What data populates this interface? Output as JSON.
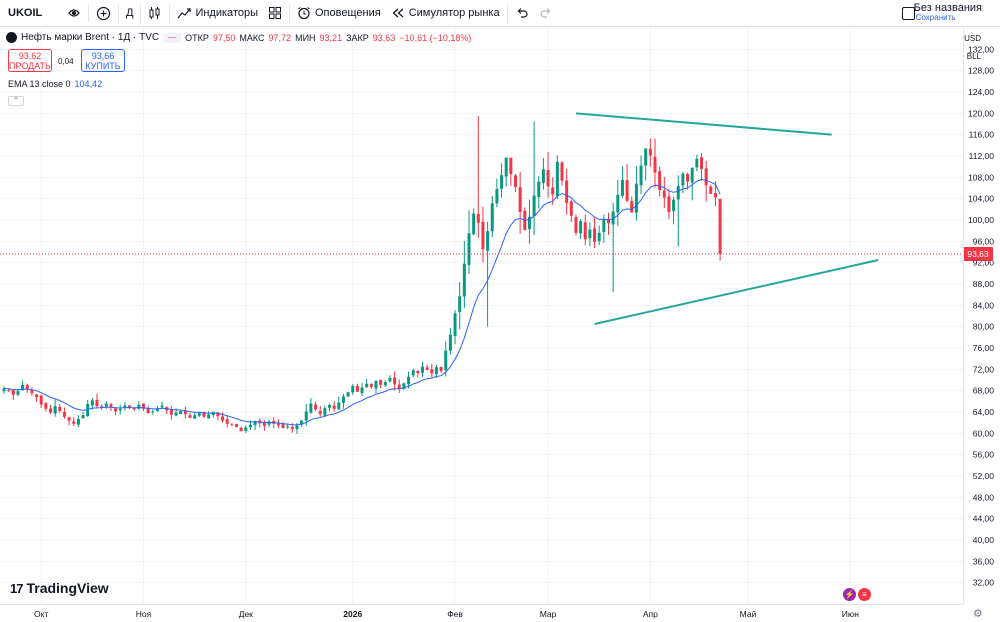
{
  "toolbar": {
    "symbol": "UKOIL",
    "interval": "Д",
    "indicators_label": "Индикаторы",
    "alerts_label": "Оповещения",
    "replay_label": "Симулятор рынка",
    "layout_name": "Без названия",
    "layout_status": "Сохранить"
  },
  "legend": {
    "title": "Нефть марки Brent · 1Д · TVC",
    "open_label": "ОТКР",
    "open": "97,50",
    "high_label": "МАКС",
    "high": "97,72",
    "low_label": "МИН",
    "low": "93,21",
    "close_label": "ЗАКР",
    "close": "93,63",
    "change": "−10,61 (−10,18%)",
    "sell_price": "93,62",
    "sell_label": "ПРОДАТЬ",
    "buy_price": "93,66",
    "buy_label": "КУПИТЬ",
    "spread": "0,04",
    "ema_label": "EMA 13 close 0",
    "ema_value": "104,42"
  },
  "price_axis": {
    "currency": "USD",
    "unit": "BLL"
  },
  "branding": {
    "logo_text": "TradingView"
  },
  "colors": {
    "up": "#089981",
    "down": "#f23645",
    "ema": "#2962ff",
    "trend": "#26a69a",
    "grid": "#f0f3fa"
  },
  "chart_data": {
    "type": "candlestick",
    "title": "Нефть марки Brent · 1Д · TVC",
    "ylim": [
      28,
      136
    ],
    "y_ticks": [
      32,
      36,
      40,
      44,
      48,
      52,
      56,
      60,
      64,
      68,
      72,
      76,
      80,
      84,
      88,
      92,
      96,
      100,
      104,
      108,
      112,
      116,
      120,
      124,
      128,
      132
    ],
    "x_ticks": [
      {
        "label": "Окт",
        "index": 8
      },
      {
        "label": "Ноя",
        "index": 30
      },
      {
        "label": "Дек",
        "index": 52
      },
      {
        "label": "2026",
        "index": 75
      },
      {
        "label": "Фев",
        "index": 97
      },
      {
        "label": "Мар",
        "index": 117
      },
      {
        "label": "Апр",
        "index": 139
      },
      {
        "label": "Май",
        "index": 160
      },
      {
        "label": "Июн",
        "index": 182
      }
    ],
    "last_price": 93.63,
    "series": [
      {
        "name": "UKOIL",
        "kind": "ohlc",
        "closes": [
          68.4,
          68.1,
          67.2,
          67.9,
          69.1,
          68.3,
          67.5,
          66.8,
          65.4,
          64.6,
          63.9,
          65.1,
          64.2,
          63.1,
          62.4,
          61.8,
          62.7,
          63.4,
          65.5,
          66.2,
          65.1,
          64.8,
          65.6,
          64.9,
          64.1,
          64.6,
          65.2,
          64.8,
          64.5,
          65.3,
          64.6,
          63.8,
          64.1,
          64.7,
          65.2,
          64.3,
          63.5,
          63.9,
          64.2,
          63.6,
          62.9,
          63.4,
          63.8,
          63.1,
          63.5,
          64.0,
          63.2,
          62.4,
          61.8,
          61.5,
          61.2,
          60.4,
          61.1,
          61.6,
          62.3,
          61.9,
          61.4,
          62.2,
          61.8,
          61.5,
          61.0,
          61.3,
          60.8,
          61.5,
          62.4,
          64.1,
          65.6,
          64.5,
          63.6,
          64.7,
          65.3,
          64.6,
          65.8,
          66.9,
          67.7,
          68.9,
          67.8,
          68.6,
          69.3,
          68.7,
          69.8,
          69.1,
          69.6,
          70.4,
          69.2,
          68.4,
          69.4,
          70.6,
          71.8,
          71.3,
          72.5,
          71.9,
          71.2,
          72.4,
          71.7,
          75.5,
          78.5,
          82.5,
          85.7,
          91.8,
          97.5,
          101.2,
          99.5,
          94.5,
          97.9,
          103.1,
          105.8,
          108.4,
          111.7,
          108.6,
          106.2,
          101.5,
          98.1,
          100.6,
          104.6,
          107.2,
          109.5,
          106.3,
          104.8,
          110.9,
          107.4,
          103.2,
          100.8,
          97.6,
          99.8,
          96.4,
          98.2,
          95.9,
          97.6,
          100.2,
          99.4,
          101.6,
          104.7,
          107.5,
          103.6,
          101.4,
          106.8,
          110.2,
          113.4,
          112.1,
          108.9,
          105.6,
          104.2,
          101.5,
          103.8,
          106.4,
          108.7,
          107.2,
          109.8,
          111.5,
          109.6,
          106.5,
          104.9,
          104.23,
          93.63
        ]
      }
    ],
    "ema_label": "EMA 13 close 0",
    "trendlines": [
      {
        "name": "upper",
        "from": {
          "index": 123,
          "value": 120.0
        },
        "to": {
          "index": 178,
          "value": 116.0
        }
      },
      {
        "name": "lower",
        "from": {
          "index": 127,
          "value": 80.5
        },
        "to": {
          "index": 188,
          "value": 92.5
        }
      }
    ]
  }
}
